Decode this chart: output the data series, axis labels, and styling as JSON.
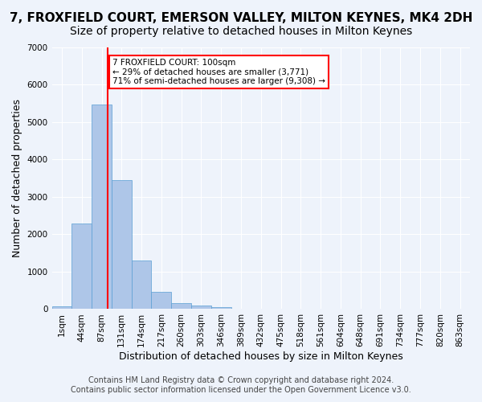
{
  "title": "7, FROXFIELD COURT, EMERSON VALLEY, MILTON KEYNES, MK4 2DH",
  "subtitle": "Size of property relative to detached houses in Milton Keynes",
  "xlabel": "Distribution of detached houses by size in Milton Keynes",
  "ylabel": "Number of detached properties",
  "footer_line1": "Contains HM Land Registry data © Crown copyright and database right 2024.",
  "footer_line2": "Contains public sector information licensed under the Open Government Licence v3.0.",
  "bin_labels": [
    "1sqm",
    "44sqm",
    "87sqm",
    "131sqm",
    "174sqm",
    "217sqm",
    "260sqm",
    "303sqm",
    "346sqm",
    "389sqm",
    "432sqm",
    "475sqm",
    "518sqm",
    "561sqm",
    "604sqm",
    "648sqm",
    "691sqm",
    "734sqm",
    "777sqm",
    "820sqm",
    "863sqm"
  ],
  "bar_values": [
    75,
    2280,
    5480,
    3450,
    1310,
    470,
    155,
    90,
    55,
    0,
    0,
    0,
    0,
    0,
    0,
    0,
    0,
    0,
    0,
    0,
    0
  ],
  "bar_color": "#aec6e8",
  "bar_edge_color": "#5a9fd4",
  "property_line_x": 2.3,
  "property_line_color": "red",
  "annotation_text": "7 FROXFIELD COURT: 100sqm\n← 29% of detached houses are smaller (3,771)\n71% of semi-detached houses are larger (9,308) →",
  "annotation_box_color": "white",
  "annotation_box_edge": "red",
  "ylim": [
    0,
    7000
  ],
  "background_color": "#eef3fb",
  "grid_color": "#ffffff",
  "title_fontsize": 11,
  "subtitle_fontsize": 10,
  "axis_label_fontsize": 9,
  "tick_fontsize": 7.5,
  "footer_fontsize": 7
}
